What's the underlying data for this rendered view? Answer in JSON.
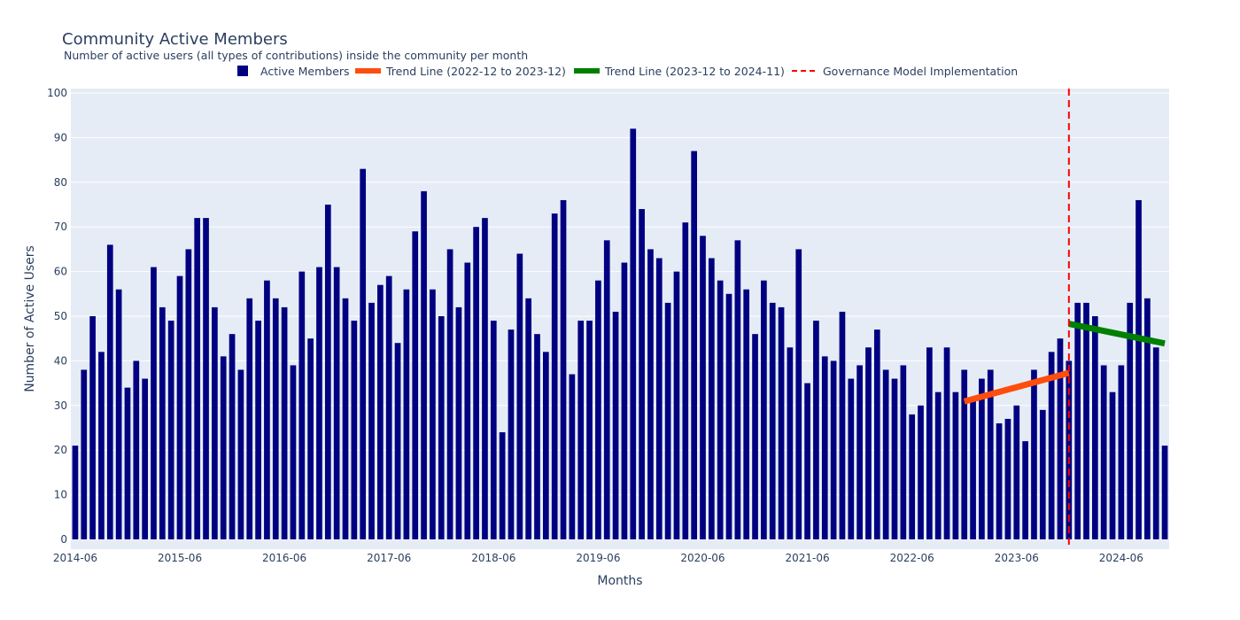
{
  "chart_data": {
    "type": "bar",
    "title": "Community Active Members",
    "subtitle": "Number of active users (all types of contributions) inside the community per month",
    "xlabel": "Months",
    "ylabel": "Number of Active Users",
    "ylim": [
      0,
      100
    ],
    "yticks": [
      0,
      10,
      20,
      30,
      40,
      50,
      60,
      70,
      80,
      90,
      100
    ],
    "grid": true,
    "legend_position": "top",
    "colors": {
      "bars": "#000080",
      "trend1": "#ff4d0d",
      "trend2": "#008000",
      "governance": "#ff0000",
      "plot_bg": "#e5ecf6",
      "grid": "#ffffff",
      "text": "#2a3f5f"
    },
    "x_start": "2014-06",
    "xtick_labels": [
      "2014-06",
      "2015-06",
      "2016-06",
      "2017-06",
      "2018-06",
      "2019-06",
      "2020-06",
      "2021-06",
      "2022-06",
      "2023-06",
      "2024-06"
    ],
    "series": [
      {
        "name": "Active Members",
        "values": [
          21,
          38,
          50,
          42,
          66,
          56,
          34,
          40,
          36,
          61,
          52,
          49,
          59,
          65,
          72,
          72,
          52,
          41,
          46,
          38,
          54,
          49,
          58,
          54,
          52,
          39,
          60,
          45,
          61,
          75,
          61,
          54,
          49,
          83,
          53,
          57,
          59,
          44,
          56,
          69,
          78,
          56,
          50,
          65,
          52,
          62,
          70,
          72,
          49,
          24,
          47,
          64,
          54,
          46,
          42,
          73,
          76,
          37,
          49,
          49,
          58,
          67,
          51,
          62,
          92,
          74,
          65,
          63,
          53,
          60,
          71,
          87,
          68,
          63,
          58,
          55,
          67,
          56,
          46,
          58,
          53,
          52,
          43,
          65,
          35,
          49,
          41,
          40,
          51,
          36,
          39,
          43,
          47,
          38,
          36,
          39,
          28,
          30,
          43,
          33,
          43,
          33,
          38,
          31,
          36,
          38,
          26,
          27,
          30,
          22,
          38,
          29,
          42,
          45,
          40,
          53,
          53,
          50,
          39,
          33,
          39,
          53,
          76,
          54,
          43,
          21
        ]
      },
      {
        "name": "Trend Line (2022-12 to 2023-12)",
        "type": "line",
        "x": [
          "2022-12",
          "2023-12"
        ],
        "values": [
          30.9,
          37.3
        ]
      },
      {
        "name": "Trend Line (2023-12 to 2024-11)",
        "type": "line",
        "x": [
          "2023-12",
          "2024-11"
        ],
        "values": [
          48.3,
          43.9
        ]
      }
    ],
    "annotations": [
      {
        "name": "Governance Model Implementation",
        "type": "vline",
        "x": "2023-12",
        "style": "dashed"
      }
    ]
  }
}
